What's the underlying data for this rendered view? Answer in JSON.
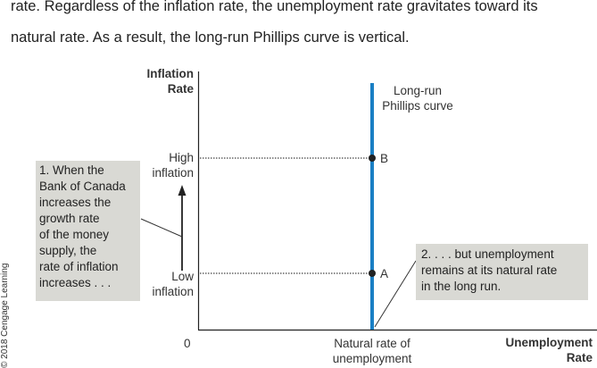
{
  "text": {
    "line1": "rate. Regardless of the inflation rate, the unemployment rate gravitates toward its",
    "line2": "natural rate. As a result, the long-run Phillips curve is vertical."
  },
  "diagram": {
    "y_axis_title": [
      "Inflation",
      "Rate"
    ],
    "x_axis_title": [
      "Unemployment",
      "Rate"
    ],
    "origin_label": "0",
    "high_label": [
      "High",
      "inflation"
    ],
    "low_label": [
      "Low",
      "inflation"
    ],
    "natural_label": [
      "Natural rate of",
      "unemployment"
    ],
    "curve_label": [
      "Long-run",
      "Phillips curve"
    ],
    "point_b": "B",
    "point_a": "A",
    "callout_left": [
      "1. When the",
      "Bank of Canada",
      "increases the",
      "growth rate",
      "of the money",
      "supply, the",
      "rate of inflation",
      "increases . . ."
    ],
    "callout_right": [
      "2. . . . but unemployment",
      "remains at its natural rate",
      "in the long run."
    ],
    "copyright": "© 2018 Cengage Learning",
    "colors": {
      "curve": "#1a7fc4",
      "axis": "#222222",
      "box": "#d9d9d4"
    }
  }
}
